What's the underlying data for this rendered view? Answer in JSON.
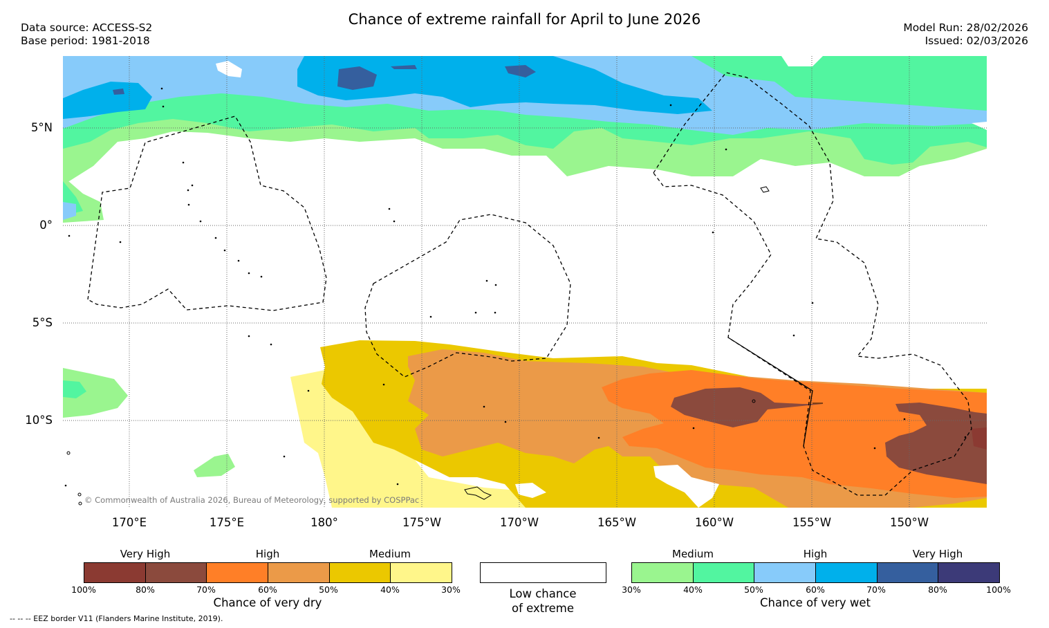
{
  "header": {
    "title": "Chance of extreme rainfall for April to June 2026",
    "data_source": "Data source: ACCESS-S2",
    "base_period": "Base period: 1981-2018",
    "model_run": "Model Run: 28/02/2026",
    "issued": "Issued: 02/03/2026"
  },
  "map": {
    "lat_labels": [
      "5°N",
      "0°",
      "5°S",
      "10°S"
    ],
    "lon_labels": [
      "170°E",
      "175°E",
      "180°",
      "175°W",
      "170°W",
      "165°W",
      "160°W",
      "155°W",
      "150°W"
    ],
    "copyright": "© Commonwealth of Australia 2026, Bureau of Meteorology, supported by COSPPac"
  },
  "legend": {
    "dry": {
      "groups": [
        "Very High",
        "High",
        "Medium"
      ],
      "colors": [
        "#8b3a32",
        "#8b4a3d",
        "#ff7f27",
        "#eb9a48",
        "#ebc800",
        "#fff68a"
      ],
      "ticks": [
        "100%",
        "80%",
        "70%",
        "60%",
        "50%",
        "40%",
        "30%"
      ],
      "caption": "Chance of very dry"
    },
    "low": {
      "line1": "Low chance",
      "line2": "of extreme"
    },
    "wet": {
      "groups": [
        "Medium",
        "High",
        "Very High"
      ],
      "colors": [
        "#9af58f",
        "#52f5a0",
        "#87cbfa",
        "#00b0eb",
        "#355f9e",
        "#3c3a78"
      ],
      "ticks": [
        "30%",
        "40%",
        "50%",
        "60%",
        "70%",
        "80%",
        "100%"
      ],
      "caption": "Chance of very wet"
    }
  },
  "footnote": "--  --  -- EEZ border V11 (Flanders Marine Institute, 2019)."
}
